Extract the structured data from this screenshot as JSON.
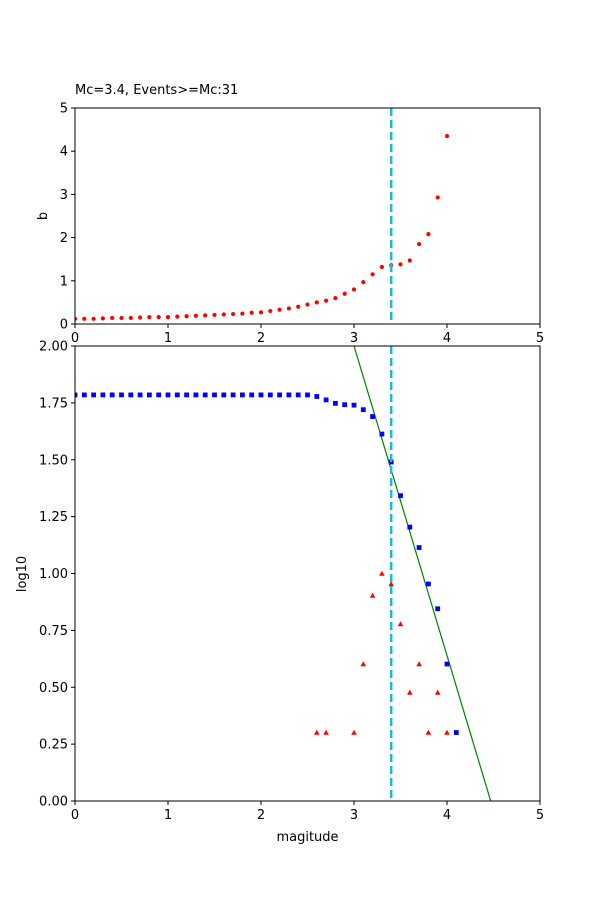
{
  "chart_data": [
    {
      "type": "scatter",
      "title": "Mc=3.4, Events>=Mc:31",
      "xlabel": "",
      "ylabel": "b",
      "xlim": [
        0,
        5
      ],
      "ylim": [
        0,
        5
      ],
      "xticks": [
        "0",
        "1",
        "2",
        "3",
        "4",
        "5"
      ],
      "yticks": [
        "0",
        "1",
        "2",
        "3",
        "4",
        "5"
      ],
      "grid": false,
      "mc_line": {
        "x": 3.4,
        "color": "#17becf"
      },
      "series": [
        {
          "color": "#ff0000",
          "marker": "circle",
          "x": [
            0.0,
            0.1,
            0.2,
            0.3,
            0.4,
            0.5,
            0.6,
            0.7,
            0.8,
            0.9,
            1.0,
            1.1,
            1.2,
            1.3,
            1.4,
            1.5,
            1.6,
            1.7,
            1.8,
            1.9,
            2.0,
            2.1,
            2.2,
            2.3,
            2.4,
            2.5,
            2.6,
            2.7,
            2.8,
            2.9,
            3.0,
            3.1,
            3.2,
            3.3,
            3.4,
            3.5,
            3.6,
            3.7,
            3.8,
            3.9,
            4.0
          ],
          "y": [
            0.12,
            0.12,
            0.12,
            0.13,
            0.14,
            0.14,
            0.14,
            0.15,
            0.16,
            0.16,
            0.16,
            0.17,
            0.18,
            0.19,
            0.2,
            0.21,
            0.22,
            0.23,
            0.24,
            0.26,
            0.27,
            0.3,
            0.33,
            0.36,
            0.4,
            0.45,
            0.5,
            0.54,
            0.6,
            0.7,
            0.8,
            0.97,
            1.15,
            1.32,
            1.36,
            1.38,
            1.47,
            1.85,
            2.08,
            2.93,
            4.35
          ]
        }
      ]
    },
    {
      "type": "scatter",
      "title": "",
      "xlabel": "magitude",
      "ylabel": "log10",
      "xlim": [
        0,
        5
      ],
      "ylim": [
        0,
        2
      ],
      "xticks": [
        "0",
        "1",
        "2",
        "3",
        "4",
        "5"
      ],
      "yticks": [
        "0.00",
        "0.25",
        "0.50",
        "0.75",
        "1.00",
        "1.25",
        "1.50",
        "1.75",
        "2.00"
      ],
      "grid": false,
      "mc_line": {
        "x": 3.4,
        "color": "#17becf"
      },
      "fit_line": {
        "color": "#008000",
        "x": [
          3.0,
          4.47
        ],
        "y": [
          2.0,
          0.0
        ]
      },
      "series": [
        {
          "color": "#0000ff",
          "marker": "square",
          "x": [
            0.0,
            0.1,
            0.2,
            0.3,
            0.4,
            0.5,
            0.6,
            0.7,
            0.8,
            0.9,
            1.0,
            1.1,
            1.2,
            1.3,
            1.4,
            1.5,
            1.6,
            1.7,
            1.8,
            1.9,
            2.0,
            2.1,
            2.2,
            2.3,
            2.4,
            2.5,
            2.6,
            2.7,
            2.8,
            2.9,
            3.0,
            3.1,
            3.2,
            3.3,
            3.4,
            3.5,
            3.6,
            3.7,
            3.8,
            3.9,
            4.0,
            4.1
          ],
          "y": [
            1.785,
            1.785,
            1.785,
            1.785,
            1.785,
            1.785,
            1.785,
            1.785,
            1.785,
            1.785,
            1.785,
            1.785,
            1.785,
            1.785,
            1.785,
            1.785,
            1.785,
            1.785,
            1.785,
            1.785,
            1.785,
            1.785,
            1.785,
            1.785,
            1.785,
            1.785,
            1.778,
            1.763,
            1.748,
            1.742,
            1.74,
            1.72,
            1.69,
            1.613,
            1.49,
            1.342,
            1.204,
            1.114,
            0.954,
            0.845,
            0.602,
            0.301
          ]
        },
        {
          "color": "#ff0000",
          "marker": "triangle",
          "x": [
            2.6,
            2.7,
            3.0,
            3.1,
            3.2,
            3.3,
            3.4,
            3.5,
            3.6,
            3.7,
            3.8,
            3.9,
            4.0
          ],
          "y": [
            0.301,
            0.301,
            0.301,
            0.602,
            0.903,
            1.0,
            0.954,
            0.778,
            0.477,
            0.602,
            0.301,
            0.477,
            0.301
          ]
        }
      ]
    }
  ]
}
